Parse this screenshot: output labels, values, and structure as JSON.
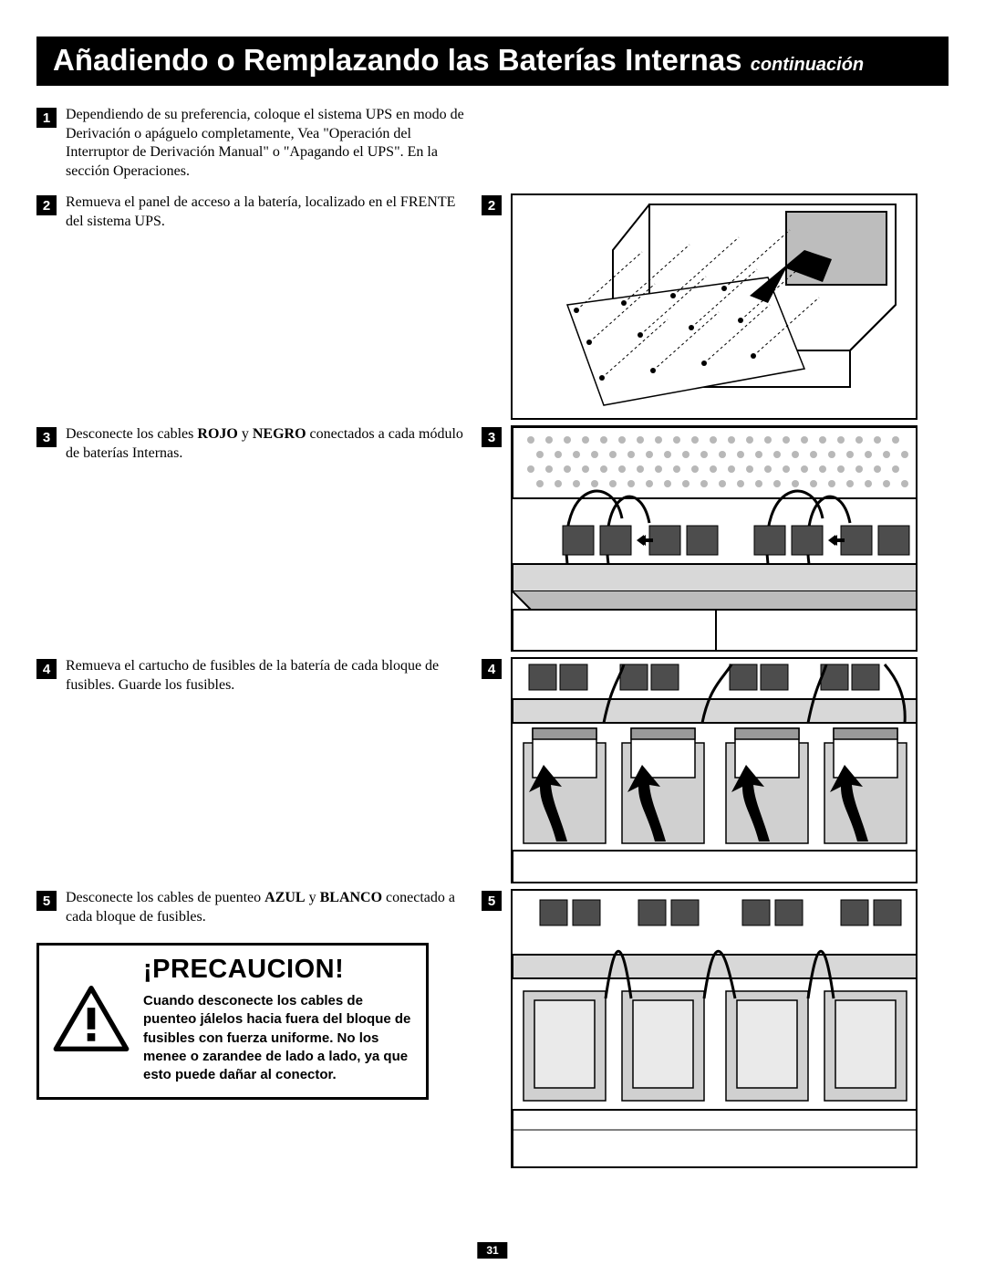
{
  "title": {
    "main": "Añadiendo o Remplazando las Baterías Internas",
    "continuation": "continuación"
  },
  "steps": [
    {
      "num": "1",
      "text_pre": "Dependiendo de su preferencia, coloque el sistema UPS en modo de Derivación o apáguelo completamente, Vea \"Operación del Interruptor de Derivación Manual\" o \"Apagando el UPS\". En la sección Operaciones.",
      "has_figure": false
    },
    {
      "num": "2",
      "text_pre": "Remueva el panel de acceso a la batería, localizado en el FRENTE del sistema UPS.",
      "has_figure": true,
      "fig_width": 446,
      "fig_height": 248
    },
    {
      "num": "3",
      "html": "Desconecte los cables <b>ROJO</b> y <b>NEGRO</b> conectados a cada módulo de baterías Internas.",
      "has_figure": true,
      "fig_width": 446,
      "fig_height": 248
    },
    {
      "num": "4",
      "text_pre": "Remueva el cartucho de fusibles de la batería de cada bloque de fusibles. Guarde los fusibles.",
      "has_figure": true,
      "fig_width": 446,
      "fig_height": 248
    },
    {
      "num": "5",
      "html": "Desconecte los cables de puenteo <b>AZUL</b> y <b>BLANCO</b> conectado a cada bloque de fusibles.",
      "has_figure": true,
      "fig_width": 446,
      "fig_height": 306
    }
  ],
  "caution": {
    "title": "¡PRECAUCION!",
    "text": "Cuando desconecte los cables de puenteo jálelos hacia fuera del  bloque de fusibles con fuerza uniforme. No los menee o zarandee de lado a lado, ya que esto puede dañar al conector."
  },
  "page_number": "31",
  "colors": {
    "black": "#000000",
    "white": "#ffffff"
  }
}
